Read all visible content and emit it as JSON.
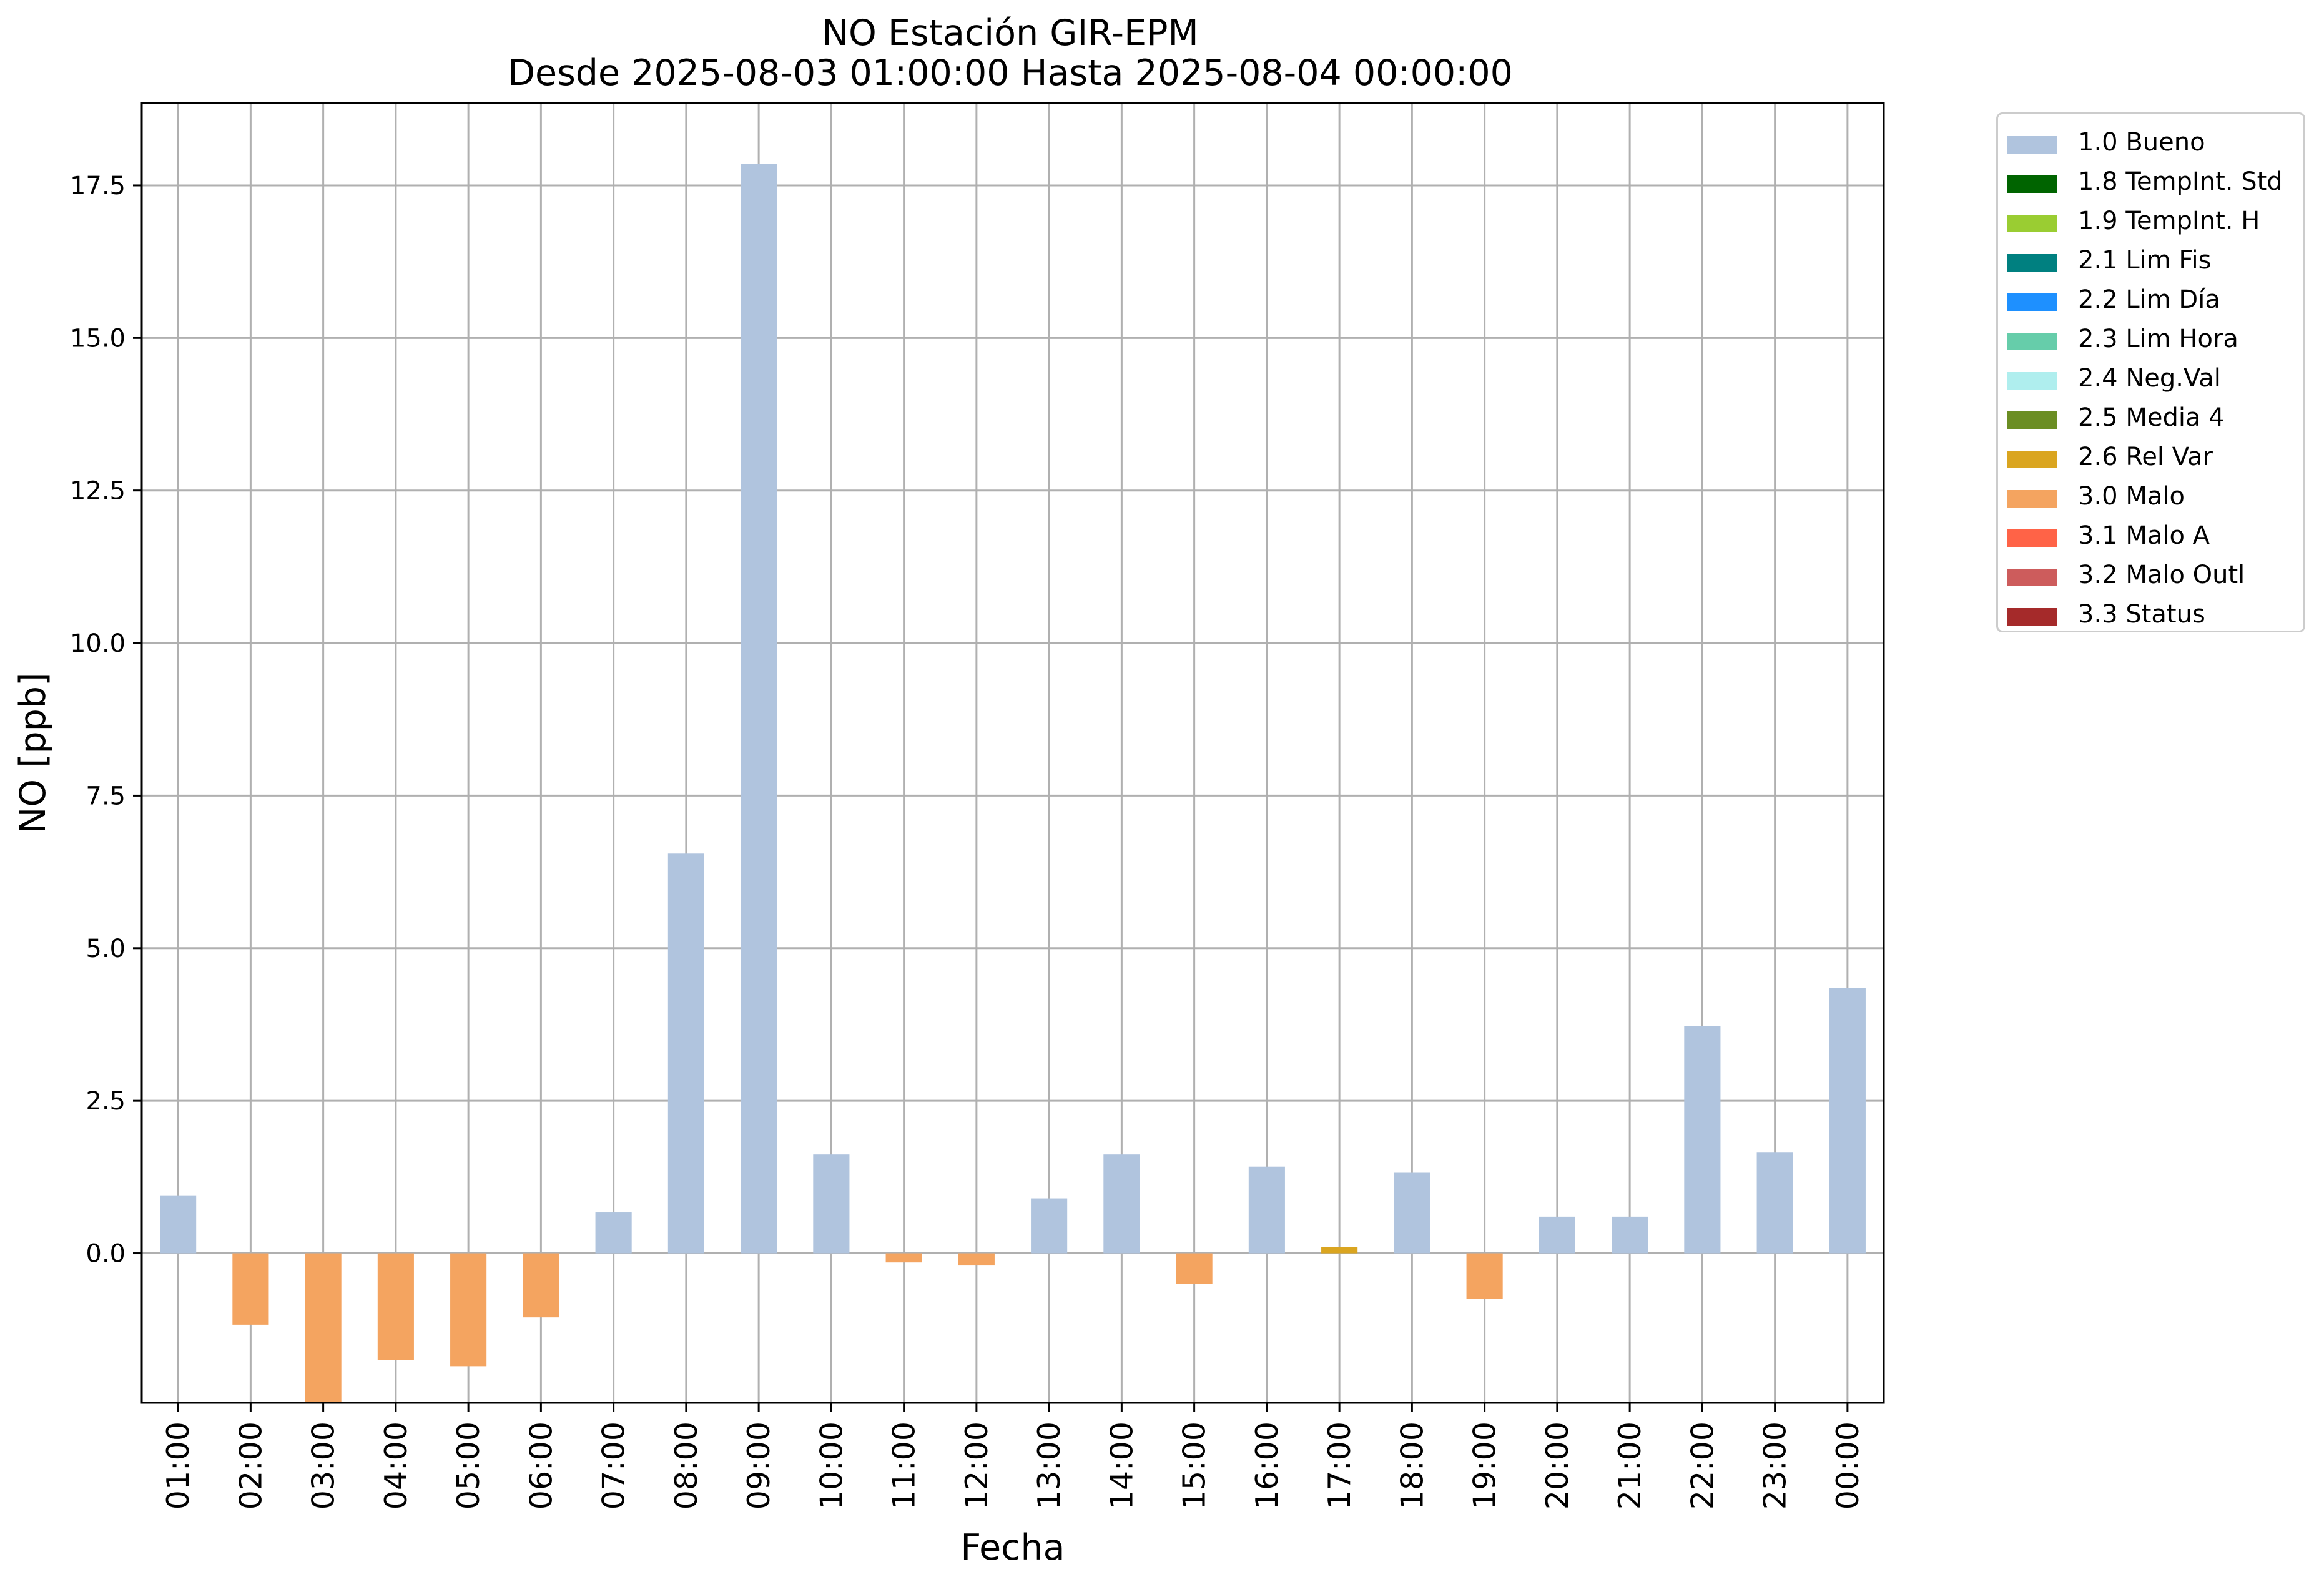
{
  "chart_data": {
    "type": "bar",
    "title": [
      "NO Estación GIR-EPM",
      "Desde 2025-08-03 01:00:00 Hasta 2025-08-04 00:00:00"
    ],
    "xlabel": "Fecha",
    "ylabel": "NO [ppb]",
    "categories": [
      "01:00",
      "02:00",
      "03:00",
      "04:00",
      "05:00",
      "06:00",
      "07:00",
      "08:00",
      "09:00",
      "10:00",
      "11:00",
      "12:00",
      "13:00",
      "14:00",
      "15:00",
      "16:00",
      "17:00",
      "18:00",
      "19:00",
      "20:00",
      "21:00",
      "22:00",
      "23:00",
      "00:00"
    ],
    "values": [
      0.95,
      -1.17,
      -2.45,
      -1.75,
      -1.85,
      -1.05,
      0.67,
      6.55,
      17.85,
      1.62,
      -0.15,
      -0.2,
      0.9,
      1.62,
      -0.5,
      1.42,
      0.1,
      1.32,
      -0.75,
      0.6,
      0.6,
      3.72,
      1.65,
      4.35
    ],
    "flags": [
      "1.0 Bueno",
      "3.0 Malo",
      "3.0 Malo",
      "3.0 Malo",
      "3.0 Malo",
      "3.0 Malo",
      "1.0 Bueno",
      "1.0 Bueno",
      "1.0 Bueno",
      "1.0 Bueno",
      "3.0 Malo",
      "3.0 Malo",
      "1.0 Bueno",
      "1.0 Bueno",
      "3.0 Malo",
      "1.0 Bueno",
      "2.6 Rel Var",
      "1.0 Bueno",
      "3.0 Malo",
      "1.0 Bueno",
      "1.0 Bueno",
      "1.0 Bueno",
      "1.0 Bueno",
      "1.0 Bueno"
    ],
    "ylim": [
      -2.45,
      18.85
    ],
    "yticks": [
      0.0,
      2.5,
      5.0,
      7.5,
      10.0,
      12.5,
      15.0,
      17.5
    ],
    "ytick_labels": [
      "0.0",
      "2.5",
      "5.0",
      "7.5",
      "10.0",
      "12.5",
      "15.0",
      "17.5"
    ],
    "grid": true,
    "legend_position": "outside-top-right",
    "legend": [
      {
        "label": "1.0 Bueno",
        "color": "#b0c4de"
      },
      {
        "label": "1.8 TempInt. Std",
        "color": "#006400"
      },
      {
        "label": "1.9 TempInt. H",
        "color": "#9acd32"
      },
      {
        "label": "2.1 Lim Fis",
        "color": "#008080"
      },
      {
        "label": "2.2 Lim Día",
        "color": "#1e90ff"
      },
      {
        "label": "2.3 Lim Hora",
        "color": "#66cdaa"
      },
      {
        "label": "2.4 Neg.Val",
        "color": "#afeeee"
      },
      {
        "label": "2.5 Media 4",
        "color": "#6b8e23"
      },
      {
        "label": "2.6 Rel Var",
        "color": "#daa520"
      },
      {
        "label": "3.0 Malo",
        "color": "#f4a460"
      },
      {
        "label": "3.1 Malo A",
        "color": "#ff6347"
      },
      {
        "label": "3.2 Malo Outl",
        "color": "#cd5c5c"
      },
      {
        "label": "3.3 Status",
        "color": "#a52a2a"
      }
    ]
  }
}
